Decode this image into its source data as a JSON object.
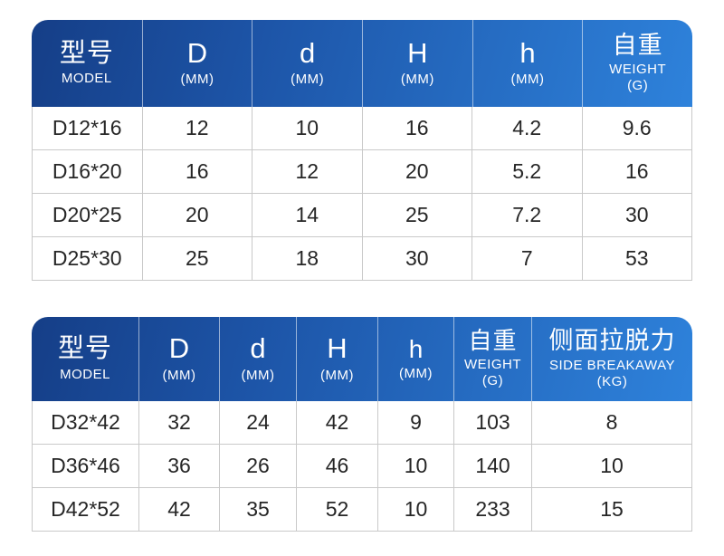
{
  "colors": {
    "header_gradient_start": "#153e87",
    "header_gradient_end": "#2e82db",
    "header_text": "#ffffff",
    "body_text": "#262626",
    "grid_border": "#c9c9c9",
    "background": "#ffffff"
  },
  "chart_data": [
    {
      "type": "table",
      "title": "",
      "columns": [
        {
          "main": "型号",
          "sub": "MODEL"
        },
        {
          "main": "D",
          "sub": "(MM)"
        },
        {
          "main": "d",
          "sub": "(MM)"
        },
        {
          "main": "H",
          "sub": "(MM)"
        },
        {
          "main": "h",
          "sub": "(MM)"
        },
        {
          "main": "自重",
          "sub": "WEIGHT",
          "sub2": "(G)"
        }
      ],
      "rows": [
        [
          "D12*16",
          "12",
          "10",
          "16",
          "4.2",
          "9.6"
        ],
        [
          "D16*20",
          "16",
          "12",
          "20",
          "5.2",
          "16"
        ],
        [
          "D20*25",
          "20",
          "14",
          "25",
          "7.2",
          "30"
        ],
        [
          "D25*30",
          "25",
          "18",
          "30",
          "7",
          "53"
        ]
      ]
    },
    {
      "type": "table",
      "title": "",
      "columns": [
        {
          "main": "型号",
          "sub": "MODEL"
        },
        {
          "main": "D",
          "sub": "(MM)"
        },
        {
          "main": "d",
          "sub": "(MM)"
        },
        {
          "main": "H",
          "sub": "(MM)"
        },
        {
          "main": "h",
          "sub": "(MM)"
        },
        {
          "main": "自重",
          "sub": "WEIGHT",
          "sub2": "(G)"
        },
        {
          "main": "侧面拉脱力",
          "sub": "SIDE BREAKAWAY",
          "sub2": "(KG)"
        }
      ],
      "rows": [
        [
          "D32*42",
          "32",
          "24",
          "42",
          "9",
          "103",
          "8"
        ],
        [
          "D36*46",
          "36",
          "26",
          "46",
          "10",
          "140",
          "10"
        ],
        [
          "D42*52",
          "42",
          "35",
          "52",
          "10",
          "233",
          "15"
        ]
      ]
    }
  ]
}
